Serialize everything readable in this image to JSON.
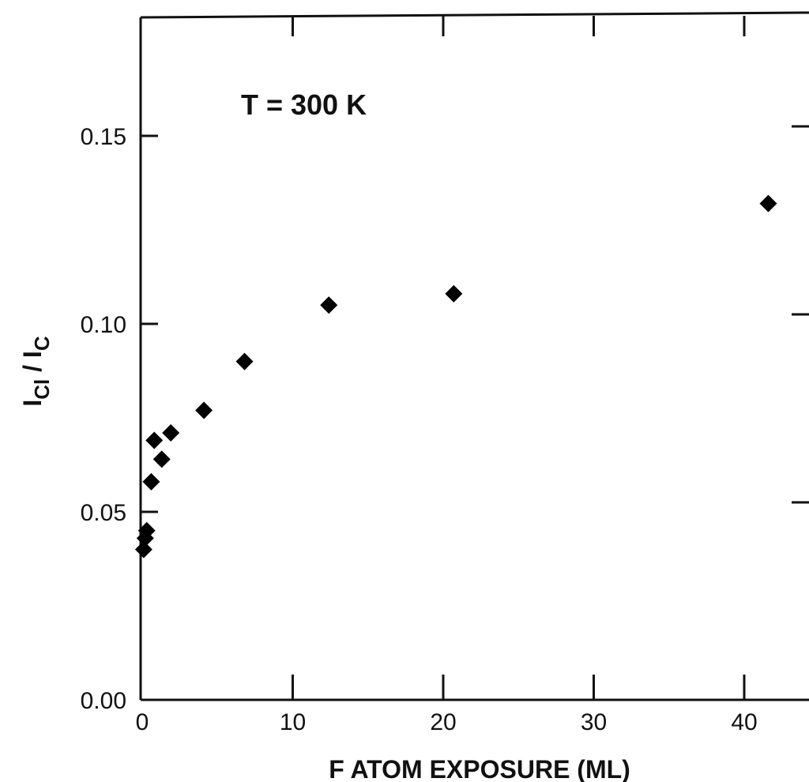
{
  "chart_data": {
    "type": "scatter",
    "title": "",
    "annotation": "T = 300 K",
    "xlabel": "F ATOM EXPOSURE (ML)",
    "ylabel": {
      "main_1": "I",
      "sub_1": "Cl",
      "slash": " / ",
      "main_2": "I",
      "sub_2": "C"
    },
    "xlim": [
      0,
      44
    ],
    "ylim": [
      0.0,
      0.18
    ],
    "x_ticks": [
      0,
      10,
      20,
      30,
      40
    ],
    "x_tick_labels": [
      "0",
      "10",
      "20",
      "30",
      "40"
    ],
    "y_ticks": [
      0.0,
      0.05,
      0.1,
      0.15
    ],
    "y_tick_labels": [
      "0.00",
      "0.05",
      "0.10",
      "0.15"
    ],
    "grid": false,
    "marker": "diamond",
    "marker_color": "#000000",
    "series": [
      {
        "points": [
          {
            "x": 0.1,
            "y": 0.04
          },
          {
            "x": 0.2,
            "y": 0.043
          },
          {
            "x": 0.3,
            "y": 0.045
          },
          {
            "x": 0.6,
            "y": 0.058
          },
          {
            "x": 0.8,
            "y": 0.069
          },
          {
            "x": 1.3,
            "y": 0.064
          },
          {
            "x": 1.9,
            "y": 0.071
          },
          {
            "x": 4.1,
            "y": 0.077
          },
          {
            "x": 6.8,
            "y": 0.09
          },
          {
            "x": 12.4,
            "y": 0.105
          },
          {
            "x": 20.7,
            "y": 0.108
          },
          {
            "x": 41.6,
            "y": 0.132
          }
        ]
      }
    ]
  }
}
